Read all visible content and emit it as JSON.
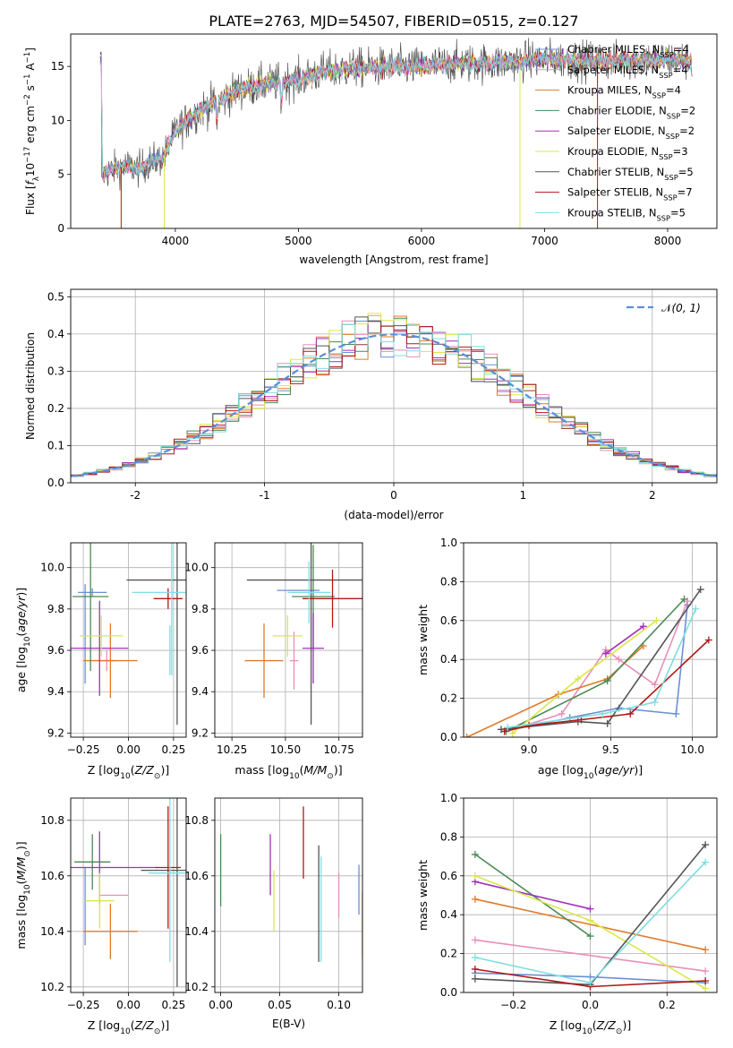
{
  "figure_title": "PLATE=2763, MJD=54507, FIBERID=0515, z=0.127",
  "colors": {
    "Chabrier MILES": "#6b8fd6",
    "Salpeter MILES": "#e88fb8",
    "Kroupa MILES": "#e07b2a",
    "Chabrier ELODIE": "#4a8a55",
    "Salpeter ELODIE": "#a030b8",
    "Kroupa ELODIE": "#d9e84a",
    "Chabrier STELIB": "#555555",
    "Salpeter STELIB": "#b01818",
    "Kroupa STELIB": "#80dde0",
    "normal_fit": "#5b8fd8"
  },
  "chart_data": [
    {
      "type": "line",
      "xlabel": "wavelength [Angstrom, rest frame]",
      "ylabel": "Flux [f_λ10^-17 erg cm^-2 s^-1 A^-1]",
      "xlim": [
        3150,
        8400
      ],
      "ylim": [
        0,
        18
      ],
      "xticks": [
        4000,
        5000,
        6000,
        7000,
        8000
      ],
      "yticks": [
        0,
        5,
        10,
        15
      ],
      "legend_position": "top-right",
      "legend": [
        {
          "model": "Chabrier MILES",
          "nssp": "4"
        },
        {
          "model": "Salpeter MILES",
          "nssp": "4"
        },
        {
          "model": "Kroupa MILES",
          "nssp": "4"
        },
        {
          "model": "Chabrier ELODIE",
          "nssp": "2"
        },
        {
          "model": "Salpeter ELODIE",
          "nssp": "2"
        },
        {
          "model": "Kroupa ELODIE",
          "nssp": "3"
        },
        {
          "model": "Chabrier STELIB",
          "nssp": "5"
        },
        {
          "model": "Salpeter STELIB",
          "nssp": "7"
        },
        {
          "model": "Kroupa STELIB",
          "nssp": "5"
        }
      ],
      "continuum": [
        [
          3400,
          5
        ],
        [
          3500,
          5.5
        ],
        [
          3600,
          5.8
        ],
        [
          3700,
          5.5
        ],
        [
          3800,
          6.2
        ],
        [
          3900,
          6.5
        ],
        [
          4000,
          9
        ],
        [
          4100,
          10
        ],
        [
          4200,
          11
        ],
        [
          4300,
          11.5
        ],
        [
          4400,
          12
        ],
        [
          4500,
          12.8
        ],
        [
          4700,
          13.3
        ],
        [
          5000,
          13.8
        ],
        [
          5200,
          14.5
        ],
        [
          5400,
          14.8
        ],
        [
          5600,
          14.9
        ],
        [
          5800,
          15
        ],
        [
          6000,
          15
        ],
        [
          6300,
          15.3
        ],
        [
          6600,
          15.3
        ],
        [
          7000,
          15.7
        ],
        [
          7500,
          15.5
        ],
        [
          8000,
          15.7
        ],
        [
          8200,
          15.5
        ]
      ],
      "drops": [
        {
          "series": "Salpeter STELIB",
          "x": 3560
        },
        {
          "series": "Kroupa ELODIE",
          "x": 3910
        },
        {
          "series": "Kroupa ELODIE",
          "x": 6800
        },
        {
          "series": "Salpeter STELIB",
          "x": 7430
        }
      ]
    },
    {
      "type": "histogram",
      "xlabel": "(data-model)/error",
      "ylabel": "Normed distribution",
      "xlim": [
        -2.5,
        2.5
      ],
      "ylim": [
        0,
        0.52
      ],
      "xticks": [
        -2,
        -1,
        0,
        1,
        2
      ],
      "yticks": [
        0.0,
        0.1,
        0.2,
        0.3,
        0.4,
        0.5
      ],
      "grid": true,
      "legend_position": "top-right",
      "normal_label": "N(0,1)",
      "bin_width": 0.1
    },
    {
      "type": "errorbar",
      "xlabel": "Z [log10(Z/Z⊙)]",
      "ylabel": "age  [log10(age/yr)]",
      "xlim": [
        -0.32,
        0.32
      ],
      "ylim": [
        9.18,
        10.12
      ],
      "xticks": [
        -0.25,
        0.0,
        0.25
      ],
      "xticklabels": [
        "−0.25",
        "0.00",
        "0.25"
      ],
      "yticks": [
        9.2,
        9.4,
        9.6,
        9.8,
        10.0
      ],
      "points": [
        {
          "series": "Chabrier MILES",
          "x": -0.24,
          "y": 9.68,
          "xerr": 0,
          "yerr": 0.24
        },
        {
          "series": "Chabrier MILES",
          "x": -0.2,
          "y": 9.88,
          "xerr": 0.08,
          "yerr": 0.02
        },
        {
          "series": "Salpeter MILES",
          "x": -0.12,
          "y": 9.55,
          "xerr": 0.05,
          "yerr": 0.05
        },
        {
          "series": "Kroupa MILES",
          "x": -0.1,
          "y": 9.55,
          "xerr": 0.15,
          "yerr": 0.18
        },
        {
          "series": "Chabrier ELODIE",
          "x": -0.21,
          "y": 9.86,
          "xerr": 0.1,
          "yerr": 0.36
        },
        {
          "series": "Salpeter ELODIE",
          "x": -0.16,
          "y": 9.61,
          "xerr": 0.16,
          "yerr": 0.23
        },
        {
          "series": "Kroupa ELODIE",
          "x": -0.15,
          "y": 9.67,
          "xerr": 0.12,
          "yerr": 0.1
        },
        {
          "series": "Chabrier STELIB",
          "x": 0.27,
          "y": 9.94,
          "xerr": 0.28,
          "yerr": 0.7
        },
        {
          "series": "Salpeter STELIB",
          "x": 0.22,
          "y": 9.85,
          "xerr": 0.08,
          "yerr": 0.05
        },
        {
          "series": "Kroupa STELIB",
          "x": 0.24,
          "y": 9.88,
          "xerr": 0.22,
          "yerr": 0.4
        },
        {
          "series": "Kroupa STELIB",
          "x": 0.23,
          "y": 9.6,
          "xerr": 0,
          "yerr": 0.12
        }
      ]
    },
    {
      "type": "errorbar",
      "xlabel": "mass [log10(M/M⊙)]",
      "ylabel": "",
      "xlim": [
        10.17,
        10.86
      ],
      "ylim": [
        9.18,
        10.12
      ],
      "xticks": [
        10.25,
        10.5,
        10.75
      ],
      "xticklabels": [
        "10.25",
        "10.50",
        "10.75"
      ],
      "yticks": [
        9.2,
        9.4,
        9.6,
        9.8,
        10.0
      ],
      "points": [
        {
          "series": "Chabrier MILES",
          "x": 10.56,
          "y": 9.89,
          "xerr": 0.1,
          "yerr": 0.0
        },
        {
          "series": "Salpeter MILES",
          "x": 10.54,
          "y": 9.55,
          "xerr": 0.02,
          "yerr": 0.14
        },
        {
          "series": "Kroupa MILES",
          "x": 10.4,
          "y": 9.55,
          "xerr": 0.09,
          "yerr": 0.18
        },
        {
          "series": "Chabrier ELODIE",
          "x": 10.63,
          "y": 9.86,
          "xerr": 0.1,
          "yerr": 0.25
        },
        {
          "series": "Salpeter ELODIE",
          "x": 10.63,
          "y": 9.61,
          "xerr": 0.05,
          "yerr": 0.17
        },
        {
          "series": "Kroupa ELODIE",
          "x": 10.51,
          "y": 9.67,
          "xerr": 0.07,
          "yerr": 0.1
        },
        {
          "series": "Chabrier STELIB",
          "x": 10.62,
          "y": 9.94,
          "xerr": 0.3,
          "yerr": 0.7
        },
        {
          "series": "Salpeter STELIB",
          "x": 10.72,
          "y": 9.85,
          "xerr": 0.14,
          "yerr": 0.14
        },
        {
          "series": "Kroupa STELIB",
          "x": 10.61,
          "y": 9.88,
          "xerr": 0.1,
          "yerr": 0.15
        }
      ]
    },
    {
      "type": "line",
      "xlabel": "age  [log10(age/yr)]",
      "ylabel": "mass weight",
      "xlim": [
        8.6,
        10.15
      ],
      "ylim": [
        0,
        1
      ],
      "xticks": [
        9.0,
        9.5,
        10.0
      ],
      "xticklabels": [
        "9.0",
        "9.5",
        "10.0"
      ],
      "yticks": [
        0.0,
        0.2,
        0.4,
        0.6,
        0.8,
        1.0
      ],
      "grid": true,
      "series": [
        {
          "name": "Chabrier MILES",
          "points": [
            [
              8.85,
              0.03
            ],
            [
              9.25,
              0.1
            ],
            [
              9.55,
              0.15
            ],
            [
              9.9,
              0.12
            ],
            [
              9.97,
              0.68
            ]
          ]
        },
        {
          "name": "Salpeter MILES",
          "points": [
            [
              8.9,
              0.04
            ],
            [
              9.2,
              0.12
            ],
            [
              9.47,
              0.45
            ],
            [
              9.55,
              0.4
            ],
            [
              9.77,
              0.27
            ],
            [
              9.97,
              0.7
            ]
          ]
        },
        {
          "name": "Kroupa MILES",
          "points": [
            [
              8.62,
              0.0
            ],
            [
              9.18,
              0.22
            ],
            [
              9.48,
              0.3
            ],
            [
              9.7,
              0.47
            ]
          ]
        },
        {
          "name": "Chabrier ELODIE",
          "points": [
            [
              8.86,
              0.03
            ],
            [
              9.48,
              0.29
            ],
            [
              9.95,
              0.71
            ]
          ]
        },
        {
          "name": "Salpeter ELODIE",
          "points": [
            [
              9.47,
              0.43
            ],
            [
              9.7,
              0.57
            ]
          ]
        },
        {
          "name": "Kroupa ELODIE",
          "points": [
            [
              8.9,
              0.02
            ],
            [
              9.3,
              0.3
            ],
            [
              9.78,
              0.6
            ]
          ]
        },
        {
          "name": "Chabrier STELIB",
          "points": [
            [
              8.83,
              0.04
            ],
            [
              9.3,
              0.08
            ],
            [
              9.48,
              0.07
            ],
            [
              10.05,
              0.76
            ]
          ]
        },
        {
          "name": "Salpeter STELIB",
          "points": [
            [
              8.85,
              0.03
            ],
            [
              9.0,
              0.06
            ],
            [
              9.32,
              0.09
            ],
            [
              9.62,
              0.12
            ],
            [
              10.1,
              0.5
            ]
          ]
        },
        {
          "name": "Kroupa STELIB",
          "points": [
            [
              8.87,
              0.05
            ],
            [
              9.45,
              0.12
            ],
            [
              9.77,
              0.18
            ],
            [
              10.02,
              0.66
            ]
          ]
        }
      ]
    },
    {
      "type": "errorbar",
      "xlabel": "Z [log10(Z/Z⊙)]",
      "ylabel": "mass [log10(M/M⊙)]",
      "xlim": [
        -0.32,
        0.32
      ],
      "ylim": [
        10.18,
        10.88
      ],
      "xticks": [
        -0.25,
        0.0,
        0.25
      ],
      "xticklabels": [
        "−0.25",
        "0.00",
        "0.25"
      ],
      "yticks": [
        10.2,
        10.4,
        10.6,
        10.8
      ],
      "points": [
        {
          "series": "Chabrier MILES",
          "x": -0.24,
          "y": 10.49,
          "xerr": 0,
          "yerr": 0.14
        },
        {
          "series": "Salpeter MILES",
          "x": -0.08,
          "y": 10.53,
          "xerr": 0.08,
          "yerr": 0.0
        },
        {
          "series": "Kroupa MILES",
          "x": -0.1,
          "y": 10.4,
          "xerr": 0.15,
          "yerr": 0.1
        },
        {
          "series": "Chabrier ELODIE",
          "x": -0.2,
          "y": 10.65,
          "xerr": 0.1,
          "yerr": 0.1
        },
        {
          "series": "Salpeter ELODIE",
          "x": -0.16,
          "y": 10.63,
          "xerr": 0.32,
          "yerr": 0.13
        },
        {
          "series": "Kroupa ELODIE",
          "x": -0.16,
          "y": 10.51,
          "xerr": 0.08,
          "yerr": 0.1
        },
        {
          "series": "Chabrier STELIB",
          "x": 0.27,
          "y": 10.62,
          "xerr": 0.2,
          "yerr": 0.42
        },
        {
          "series": "Salpeter STELIB",
          "x": 0.22,
          "y": 10.63,
          "xerr": 0.07,
          "yerr": 0.22
        },
        {
          "series": "Kroupa STELIB",
          "x": 0.23,
          "y": 10.61,
          "xerr": 0.12,
          "yerr": 0.32
        }
      ]
    },
    {
      "type": "errorbar",
      "xlabel": "E(B-V)",
      "ylabel": "",
      "xlim": [
        -0.005,
        0.12
      ],
      "ylim": [
        10.18,
        10.88
      ],
      "xticks": [
        0.0,
        0.05,
        0.1
      ],
      "xticklabels": [
        "0.00",
        "0.05",
        "0.10"
      ],
      "yticks": [
        10.2,
        10.4,
        10.6,
        10.8
      ],
      "points": [
        {
          "series": "Chabrier ELODIE",
          "x": 0.0,
          "y": 10.62,
          "xerr": 0,
          "yerr": 0.13
        },
        {
          "series": "Salpeter ELODIE",
          "x": 0.042,
          "y": 10.64,
          "xerr": 0,
          "yerr": 0.11
        },
        {
          "series": "Kroupa ELODIE",
          "x": 0.045,
          "y": 10.51,
          "xerr": 0,
          "yerr": 0.11
        },
        {
          "series": "Salpeter STELIB",
          "x": 0.07,
          "y": 10.72,
          "xerr": 0,
          "yerr": 0.13
        },
        {
          "series": "Chabrier STELIB",
          "x": 0.083,
          "y": 10.5,
          "xerr": 0,
          "yerr": 0.21
        },
        {
          "series": "Kroupa STELIB",
          "x": 0.085,
          "y": 10.48,
          "xerr": 0,
          "yerr": 0.19
        },
        {
          "series": "Salpeter MILES",
          "x": 0.1,
          "y": 10.53,
          "xerr": 0,
          "yerr": 0.08
        },
        {
          "series": "Chabrier MILES",
          "x": 0.117,
          "y": 10.55,
          "xerr": 0,
          "yerr": 0.09
        },
        {
          "series": "Kroupa MILES",
          "x": 0.12,
          "y": 10.42,
          "xerr": 0,
          "yerr": 0.12
        }
      ]
    },
    {
      "type": "line",
      "xlabel": "Z [log10(Z/Z⊙)]",
      "ylabel": "mass weight",
      "xlim": [
        -0.33,
        0.33
      ],
      "ylim": [
        0,
        1
      ],
      "xticks": [
        -0.2,
        0.0,
        0.2
      ],
      "xticklabels": [
        "−0.2",
        "0.0",
        "0.2"
      ],
      "yticks": [
        0.0,
        0.2,
        0.4,
        0.6,
        0.8,
        1.0
      ],
      "grid": true,
      "series": [
        {
          "name": "Chabrier MILES",
          "points": [
            [
              -0.3,
              0.1
            ],
            [
              0.0,
              0.08
            ],
            [
              0.3,
              0.05
            ]
          ]
        },
        {
          "name": "Salpeter MILES",
          "points": [
            [
              -0.3,
              0.27
            ],
            [
              0.3,
              0.11
            ]
          ]
        },
        {
          "name": "Kroupa MILES",
          "points": [
            [
              -0.3,
              0.48
            ],
            [
              0.3,
              0.22
            ]
          ]
        },
        {
          "name": "Chabrier ELODIE",
          "points": [
            [
              -0.3,
              0.71
            ],
            [
              0.0,
              0.29
            ]
          ]
        },
        {
          "name": "Salpeter ELODIE",
          "points": [
            [
              -0.3,
              0.57
            ],
            [
              0.0,
              0.43
            ]
          ]
        },
        {
          "name": "Kroupa ELODIE",
          "points": [
            [
              -0.3,
              0.6
            ],
            [
              0.0,
              0.37
            ],
            [
              0.3,
              0.02
            ]
          ]
        },
        {
          "name": "Chabrier STELIB",
          "points": [
            [
              -0.3,
              0.07
            ],
            [
              0.0,
              0.04
            ],
            [
              0.3,
              0.76
            ]
          ]
        },
        {
          "name": "Salpeter STELIB",
          "points": [
            [
              -0.3,
              0.12
            ],
            [
              0.0,
              0.03
            ],
            [
              0.3,
              0.06
            ]
          ]
        },
        {
          "name": "Kroupa STELIB",
          "points": [
            [
              -0.3,
              0.18
            ],
            [
              0.0,
              0.05
            ],
            [
              0.3,
              0.67
            ]
          ]
        }
      ]
    }
  ]
}
